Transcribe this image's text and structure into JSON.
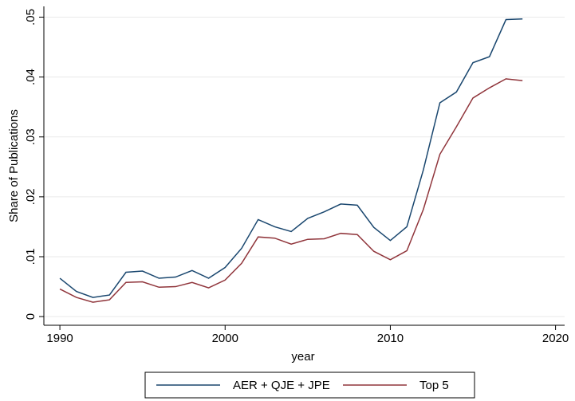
{
  "chart_data": {
    "type": "line",
    "x_label": "year",
    "y_label": "Share of Publications",
    "x": [
      1990,
      1991,
      1992,
      1993,
      1994,
      1995,
      1996,
      1997,
      1998,
      1999,
      2000,
      2001,
      2002,
      2003,
      2004,
      2005,
      2006,
      2007,
      2008,
      2009,
      2010,
      2011,
      2012,
      2013,
      2014,
      2015,
      2016,
      2017,
      2018
    ],
    "series": [
      {
        "name": "AER + QJE + JPE",
        "color": "#1a476f",
        "values": [
          0.0064,
          0.0042,
          0.0032,
          0.0036,
          0.0074,
          0.0076,
          0.0064,
          0.0066,
          0.0077,
          0.0064,
          0.0082,
          0.0114,
          0.0162,
          0.015,
          0.0142,
          0.0164,
          0.0175,
          0.0188,
          0.0186,
          0.0149,
          0.0127,
          0.015,
          0.0245,
          0.0357,
          0.0375,
          0.0424,
          0.0434,
          0.0496,
          0.0497
        ]
      },
      {
        "name": "Top 5",
        "color": "#90353b",
        "values": [
          0.0046,
          0.0032,
          0.0024,
          0.0028,
          0.0057,
          0.0058,
          0.0049,
          0.005,
          0.0057,
          0.0048,
          0.0061,
          0.0089,
          0.0133,
          0.0131,
          0.0121,
          0.0129,
          0.013,
          0.0139,
          0.0137,
          0.0109,
          0.0095,
          0.011,
          0.0179,
          0.0271,
          0.0317,
          0.0365,
          0.0382,
          0.0397,
          0.0394
        ]
      }
    ],
    "xlim": [
      1989.03,
      2020.55
    ],
    "xticks": [
      1990,
      2000,
      2010,
      2020
    ],
    "ylim": [
      -0.00145,
      0.0518
    ],
    "yticks": [
      0,
      {
        "value": 0.01,
        "label": ".01"
      },
      {
        "value": 0.02,
        "label": ".02"
      },
      {
        "value": 0.03,
        "label": ".03"
      },
      {
        "value": 0.04,
        "label": ".04"
      },
      {
        "value": 0.05,
        "label": ".05"
      }
    ],
    "grid": true,
    "legend": "bottom"
  }
}
